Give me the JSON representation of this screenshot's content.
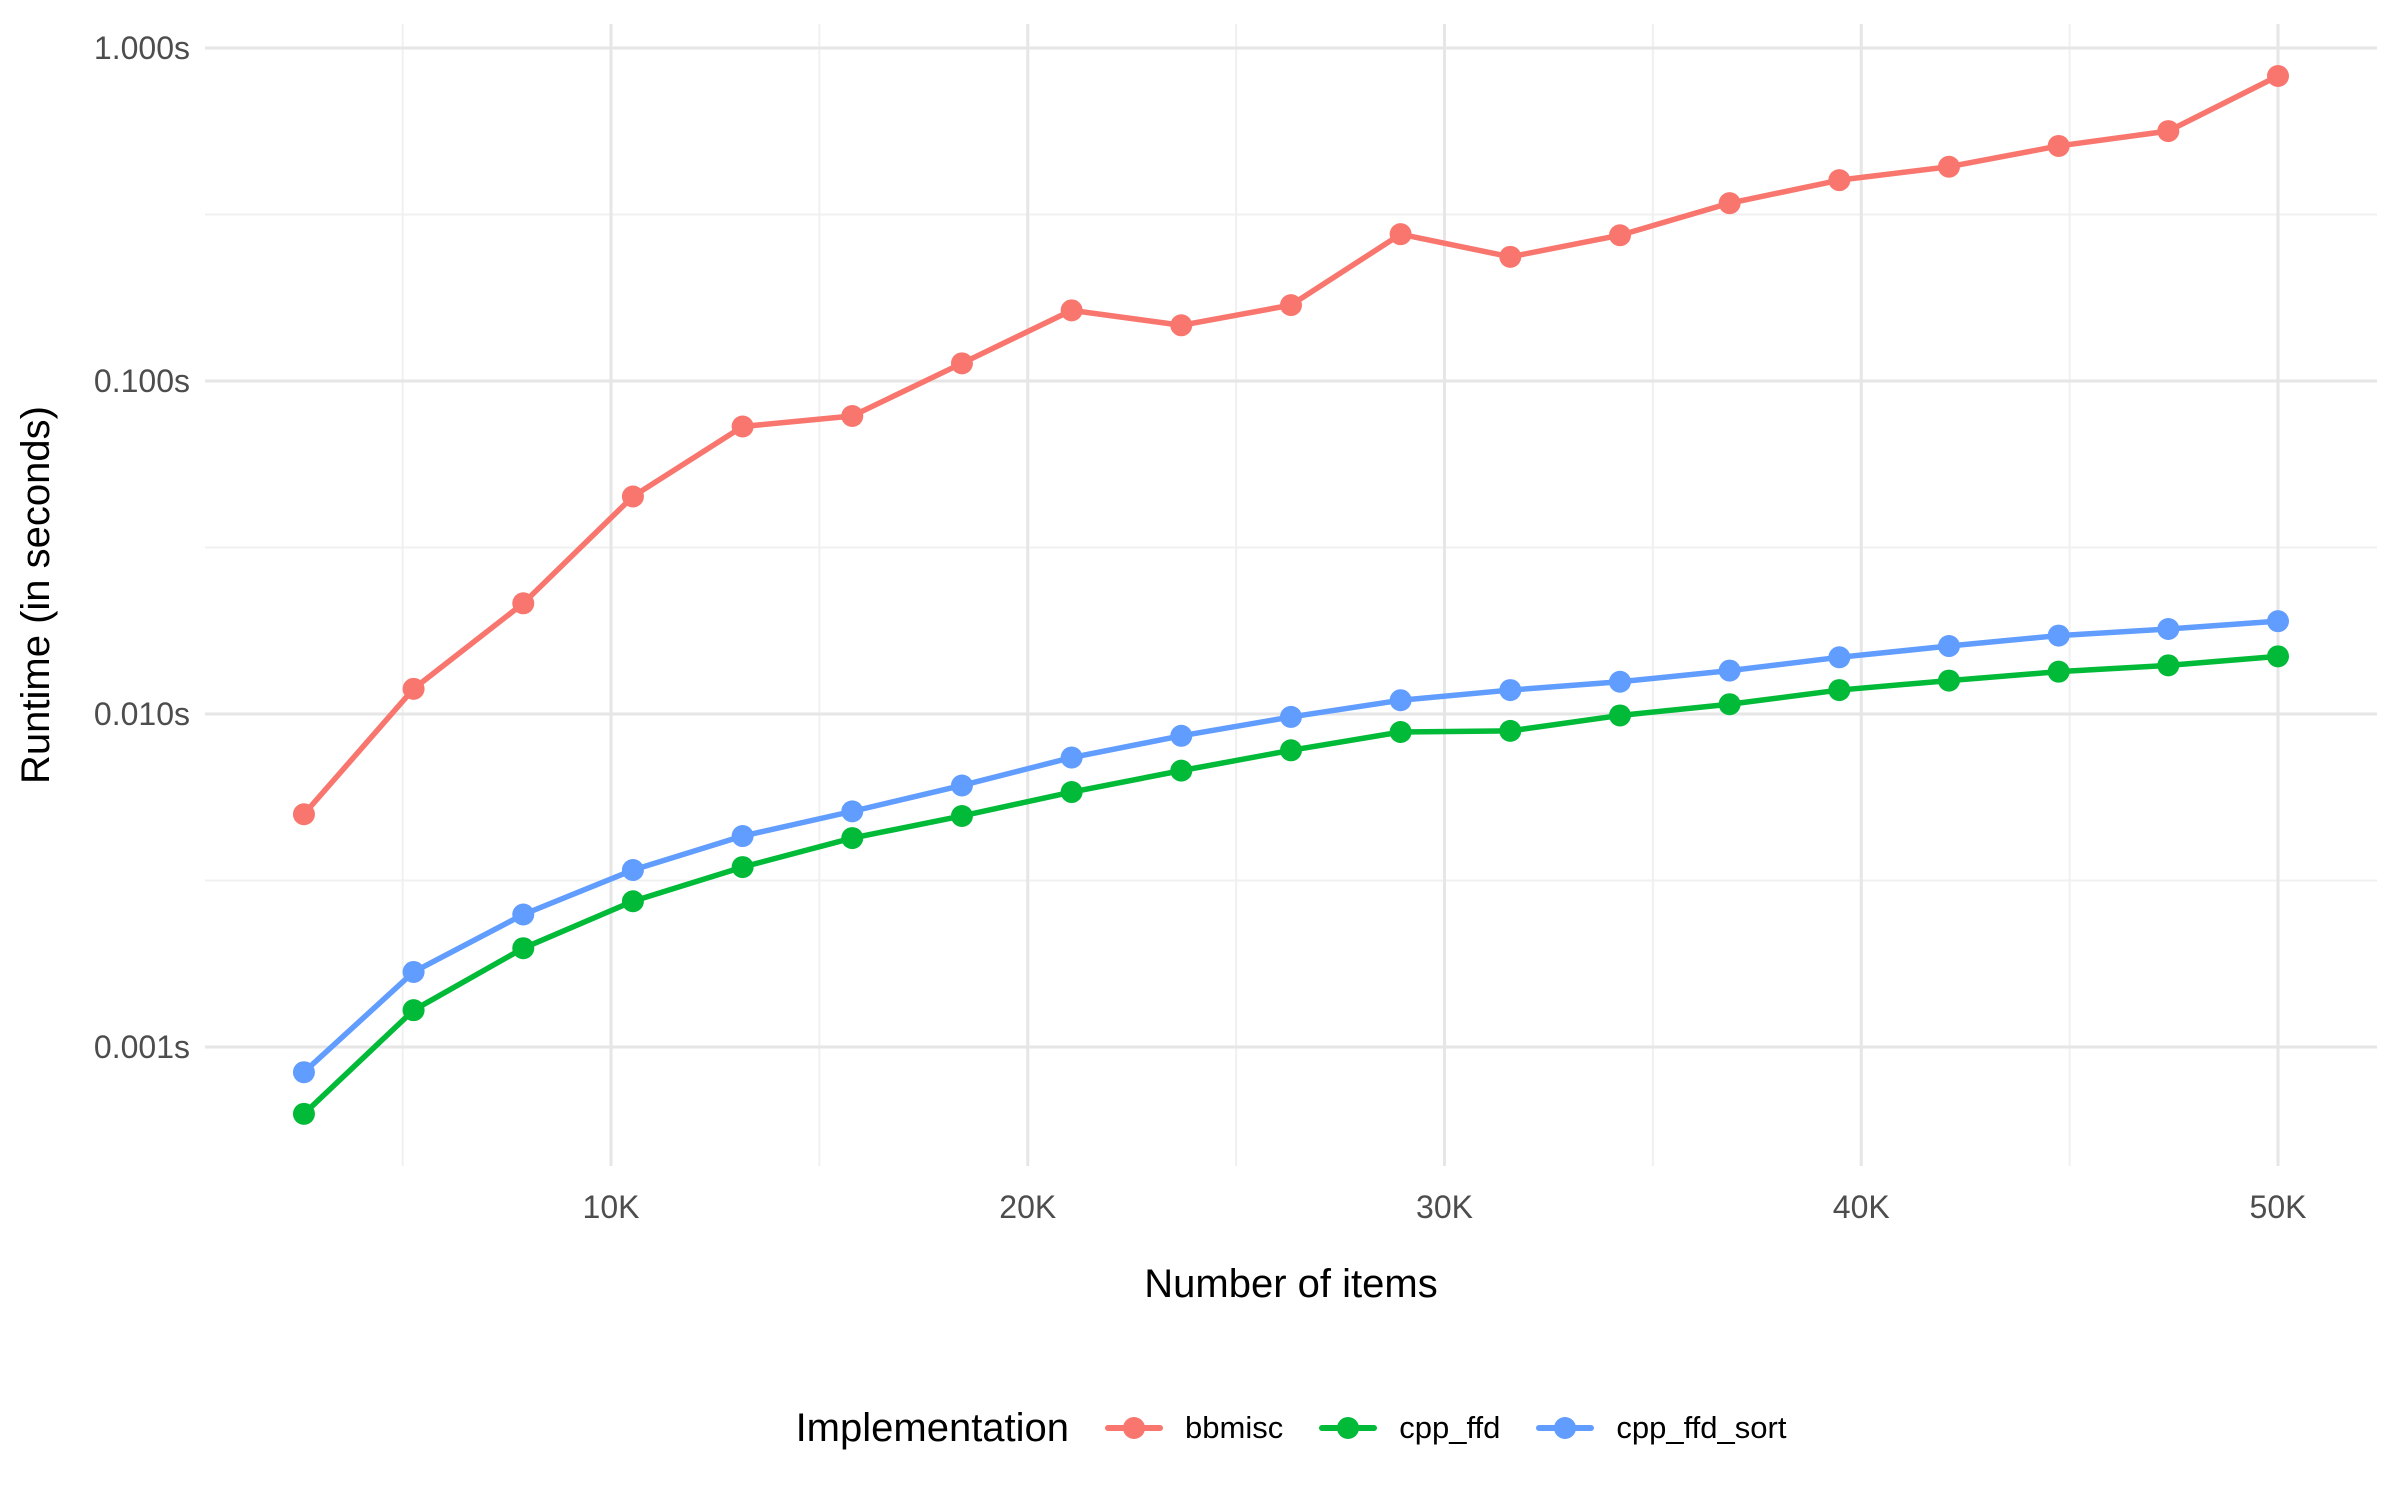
{
  "chart_data": {
    "type": "line",
    "title": "",
    "xlabel": "Number of items",
    "ylabel": "Runtime (in seconds)",
    "legend_title": "Implementation",
    "legend_position": "bottom",
    "grid": true,
    "y_scale": "log10",
    "x_range": [
      2632,
      50000
    ],
    "ylim": [
      0.00063,
      0.824
    ],
    "x": [
      2632,
      5263,
      7895,
      10526,
      13158,
      15789,
      18421,
      21053,
      23684,
      26316,
      28947,
      31579,
      34211,
      36842,
      39474,
      42105,
      44737,
      47368,
      50000
    ],
    "series": [
      {
        "name": "bbmisc",
        "color": "#F8766D",
        "values": [
          0.005,
          0.0119,
          0.0215,
          0.045,
          0.073,
          0.0785,
          0.113,
          0.163,
          0.147,
          0.169,
          0.276,
          0.236,
          0.274,
          0.342,
          0.401,
          0.44,
          0.508,
          0.563,
          0.824
        ]
      },
      {
        "name": "cpp_ffd",
        "color": "#00BA38",
        "values": [
          0.00063,
          0.00129,
          0.00198,
          0.00274,
          0.00347,
          0.00424,
          0.00494,
          0.00583,
          0.00676,
          0.00778,
          0.00883,
          0.0089,
          0.0099,
          0.0107,
          0.0118,
          0.0126,
          0.0134,
          0.014,
          0.0149
        ]
      },
      {
        "name": "cpp_ffd_sort",
        "color": "#619CFF",
        "values": [
          0.00084,
          0.00168,
          0.0025,
          0.0034,
          0.0043,
          0.0051,
          0.0061,
          0.0074,
          0.0086,
          0.0098,
          0.011,
          0.0118,
          0.0125,
          0.0135,
          0.0148,
          0.016,
          0.0172,
          0.018,
          0.019
        ]
      }
    ],
    "x_breaks": [
      {
        "value": 10000,
        "label": "10K"
      },
      {
        "value": 20000,
        "label": "20K"
      },
      {
        "value": 30000,
        "label": "30K"
      },
      {
        "value": 40000,
        "label": "40K"
      },
      {
        "value": 50000,
        "label": "50K"
      }
    ],
    "x_minor_breaks": [
      5000,
      15000,
      25000,
      35000,
      45000
    ],
    "y_breaks": [
      {
        "value": 1.0,
        "label": "1.000s"
      },
      {
        "value": 0.1,
        "label": "0.100s"
      },
      {
        "value": 0.01,
        "label": "0.010s"
      },
      {
        "value": 0.001,
        "label": "0.001s"
      }
    ],
    "y_minor_breaks": [
      0.31622776601,
      0.031622776601,
      0.0031622776601
    ],
    "colors": {
      "background": "#ffffff",
      "grid_major": "#E6E6E6",
      "grid_minor": "#F0F0F0",
      "tick_text": "#4D4D4D",
      "title_text": "#000000"
    }
  }
}
